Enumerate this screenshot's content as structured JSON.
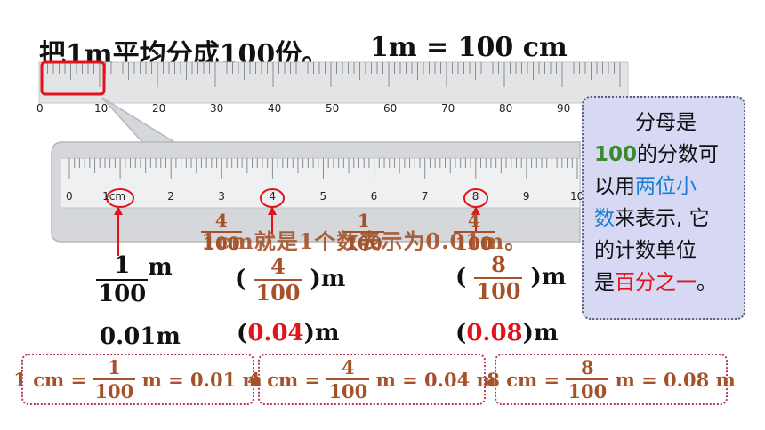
{
  "title": "把1m平均分成100份。",
  "equation": "1m = 100 cm",
  "ruler_top": {
    "ticks": [
      "0",
      "10",
      "20",
      "30",
      "40",
      "50",
      "60",
      "70",
      "80",
      "90"
    ]
  },
  "ruler_zoom": {
    "ticks": [
      "0",
      "1cm",
      "2",
      "3",
      "4",
      "5",
      "6",
      "7",
      "8",
      "9",
      "10"
    ]
  },
  "overlap_caption": "1cm就是1个数表示为0.01m。",
  "overlap_fracs": [
    {
      "num": "4",
      "den": "100"
    },
    {
      "num": "1",
      "den": "100"
    },
    {
      "num": "4",
      "den": "100"
    }
  ],
  "col1": {
    "num": "1",
    "den": "100",
    "unit": "m",
    "decimal": "0.01m"
  },
  "col2": {
    "open": "(",
    "num": "4",
    "den": "100",
    "close": ")m",
    "dec_open": "(",
    "decimal": "0.04",
    "dec_close": ")m"
  },
  "col3": {
    "open": "(",
    "num": "8",
    "den": "100",
    "close": ")m",
    "dec_open": "(",
    "decimal": "0.08",
    "dec_close": ")m"
  },
  "bottom_boxes": [
    {
      "left": "1 cm =",
      "num": "1",
      "den": "100",
      "right": "m = 0.01 m"
    },
    {
      "left": "4 cm =",
      "num": "4",
      "den": "100",
      "right": "m = 0.04 m"
    },
    {
      "left": "8 cm =",
      "num": "8",
      "den": "100",
      "right": "m = 0.08 m"
    }
  ],
  "info": {
    "l1": "分母是",
    "l2a": "100",
    "l2b": "的分数可",
    "l3a": "以用",
    "l3b": "两位小",
    "l4a": "数",
    "l4b": "来表示, 它",
    "l5": "的计数单位",
    "l6a": "是",
    "l6b": "百分之一",
    "l6c": "。"
  },
  "colors": {
    "brown": "#a5522a",
    "red": "#e3131b",
    "green": "#3c8a2e",
    "blue": "#1b7fd0",
    "panel": "#d7d9f4",
    "ruler": "#e2e4e6"
  }
}
